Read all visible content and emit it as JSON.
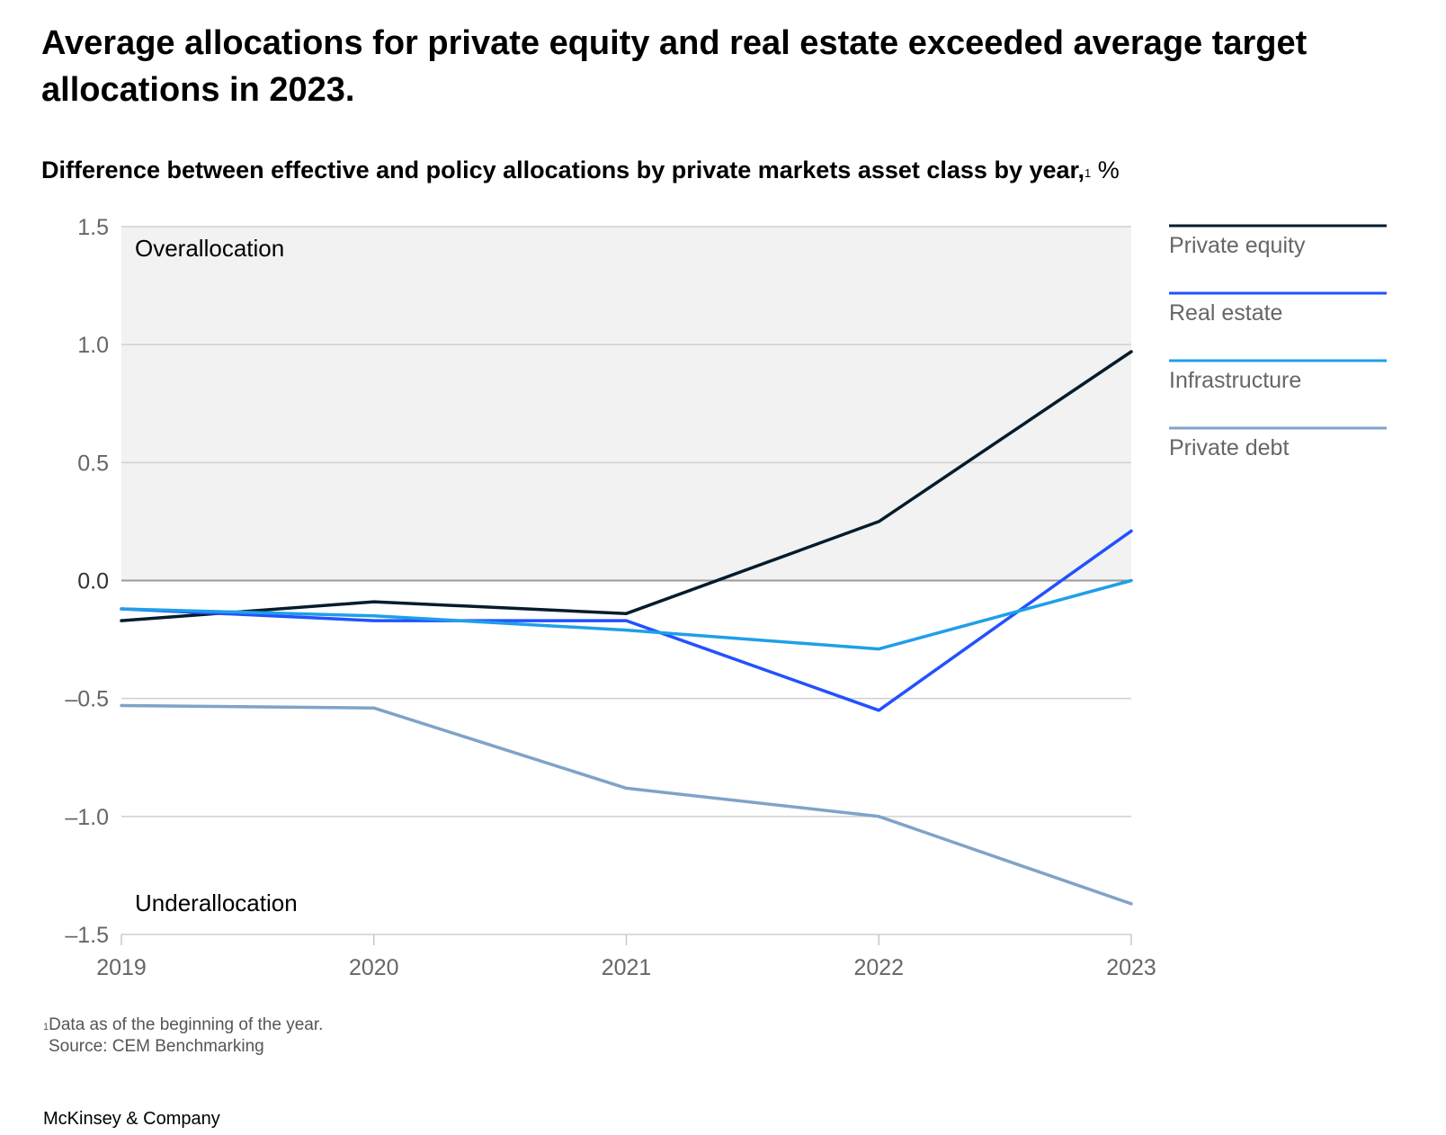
{
  "headline": "Average allocations for private equity and real estate exceeded average target allocations in 2023.",
  "chart_data": {
    "type": "line",
    "title": "Difference between effective and policy allocations by private markets asset class by year,",
    "title_footnote_marker": "1",
    "unit": "%",
    "x": [
      "2019",
      "2020",
      "2021",
      "2022",
      "2023"
    ],
    "ylim": [
      -1.5,
      1.5
    ],
    "yticks": [
      1.5,
      1.0,
      0.5,
      0.0,
      -0.5,
      -1.0,
      -1.5
    ],
    "ytick_labels": [
      "1.5",
      "1.0",
      "0.5",
      "0.0",
      "–0.5",
      "–1.0",
      "–1.5"
    ],
    "grid": true,
    "legend_position": "right",
    "region_labels": {
      "above": "Overallocation",
      "below": "Underallocation"
    },
    "shaded_region": "above-zero",
    "shade_color": "#f2f2f2",
    "series": [
      {
        "name": "Private equity",
        "color": "#051c2c",
        "values": [
          -0.17,
          -0.09,
          -0.14,
          0.25,
          0.97
        ]
      },
      {
        "name": "Real estate",
        "color": "#2251ff",
        "values": [
          -0.12,
          -0.17,
          -0.17,
          -0.55,
          0.21
        ]
      },
      {
        "name": "Infrastructure",
        "color": "#1f9fe8",
        "values": [
          -0.12,
          -0.15,
          -0.21,
          -0.29,
          0.0
        ]
      },
      {
        "name": "Private debt",
        "color": "#7fa3c7",
        "values": [
          -0.53,
          -0.54,
          -0.88,
          -1.0,
          -1.37
        ]
      }
    ]
  },
  "footnote": {
    "marker": "1",
    "text": "Data as of the beginning of the year."
  },
  "source": "Source: CEM Benchmarking",
  "brand": "McKinsey & Company"
}
